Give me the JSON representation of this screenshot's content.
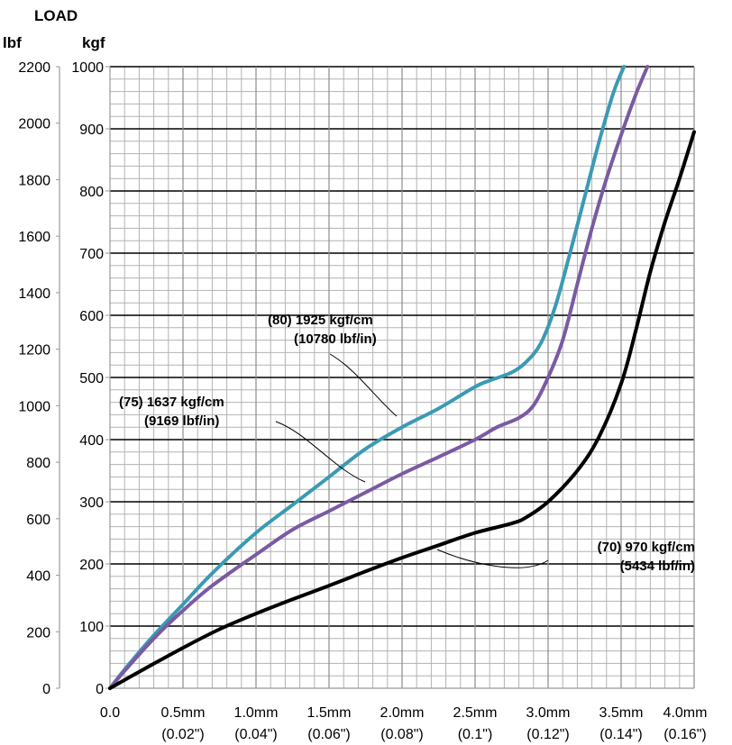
{
  "chart_data": {
    "type": "line",
    "title": "LOAD",
    "ylabel_left": "lbf",
    "ylabel_right": "kgf",
    "xlim": [
      0,
      4.0
    ],
    "ylim_kgf": [
      0,
      1000
    ],
    "ylim_lbf": [
      0,
      2200
    ],
    "grid": true,
    "legend": "none",
    "x_ticks": [
      {
        "value": 0.0,
        "label": "0.0",
        "sub": ""
      },
      {
        "value": 0.5,
        "label": "0.5mm",
        "sub": "(0.02\")"
      },
      {
        "value": 1.0,
        "label": "1.0mm",
        "sub": "(0.04\")"
      },
      {
        "value": 1.5,
        "label": "1.5mm",
        "sub": "(0.06\")"
      },
      {
        "value": 2.0,
        "label": "2.0mm",
        "sub": "(0.08\")"
      },
      {
        "value": 2.5,
        "label": "2.5mm",
        "sub": "(0.1\")"
      },
      {
        "value": 3.0,
        "label": "3.0mm",
        "sub": "(0.12\")"
      },
      {
        "value": 3.5,
        "label": "3.5mm",
        "sub": "(0.14\")"
      },
      {
        "value": 4.0,
        "label": "4.0mm",
        "sub": "(0.16\")"
      }
    ],
    "kgf_ticks": [
      {
        "value": 0,
        "label": "0"
      },
      {
        "value": 100,
        "label": "100"
      },
      {
        "value": 200,
        "label": "200"
      },
      {
        "value": 300,
        "label": "300"
      },
      {
        "value": 400,
        "label": "400"
      },
      {
        "value": 500,
        "label": "500"
      },
      {
        "value": 600,
        "label": "600"
      },
      {
        "value": 700,
        "label": "700"
      },
      {
        "value": 800,
        "label": "800"
      },
      {
        "value": 900,
        "label": "900"
      },
      {
        "value": 1000,
        "label": "1000"
      }
    ],
    "lbf_ticks": [
      {
        "value": 0,
        "label": "0"
      },
      {
        "value": 200,
        "label": "200"
      },
      {
        "value": 400,
        "label": "400"
      },
      {
        "value": 600,
        "label": "600"
      },
      {
        "value": 800,
        "label": "800"
      },
      {
        "value": 1000,
        "label": "1000"
      },
      {
        "value": 1200,
        "label": "1200"
      },
      {
        "value": 1400,
        "label": "1400"
      },
      {
        "value": 1600,
        "label": "1600"
      },
      {
        "value": 1800,
        "label": "1800"
      },
      {
        "value": 2000,
        "label": "2000"
      },
      {
        "value": 2200,
        "label": "2200"
      }
    ],
    "series": [
      {
        "name": "(80) 1925 kgf/cm (10780 lbf/in)",
        "color": "#3a9ab4",
        "x": [
          0,
          0.1,
          0.3,
          0.5,
          0.7,
          1.0,
          1.25,
          1.5,
          1.75,
          2.0,
          2.25,
          2.5,
          2.6,
          2.75,
          2.85,
          2.95,
          3.05,
          3.15,
          3.25,
          3.35,
          3.45,
          3.52
        ],
        "y": [
          0,
          30,
          85,
          135,
          185,
          250,
          295,
          340,
          385,
          420,
          450,
          485,
          495,
          508,
          525,
          555,
          615,
          700,
          790,
          880,
          960,
          1000
        ]
      },
      {
        "name": "(75) 1637 kgf/cm (9169 lbf/in)",
        "color": "#7a5aa2",
        "x": [
          0,
          0.1,
          0.3,
          0.5,
          0.7,
          1.0,
          1.25,
          1.5,
          1.75,
          2.0,
          2.25,
          2.5,
          2.65,
          2.8,
          2.9,
          3.0,
          3.1,
          3.2,
          3.3,
          3.4,
          3.5,
          3.6,
          3.68
        ],
        "y": [
          0,
          28,
          80,
          125,
          165,
          215,
          255,
          285,
          315,
          345,
          372,
          400,
          420,
          435,
          455,
          500,
          560,
          650,
          740,
          820,
          890,
          955,
          1000
        ]
      },
      {
        "name": "(70) 970 kgf/cm (5434 lbf/in)",
        "color": "#000000",
        "x": [
          0,
          0.25,
          0.5,
          0.75,
          1.0,
          1.25,
          1.5,
          1.75,
          2.0,
          2.25,
          2.5,
          2.75,
          2.85,
          3.0,
          3.2,
          3.35,
          3.5,
          3.6,
          3.7,
          3.8,
          3.9,
          4.0
        ],
        "y": [
          0,
          33,
          65,
          95,
          120,
          143,
          165,
          188,
          210,
          230,
          250,
          265,
          275,
          300,
          350,
          405,
          490,
          575,
          670,
          750,
          820,
          895
        ]
      }
    ],
    "annotations": [
      {
        "line1": "(80) 1925 kgf/cm",
        "line2": "(10780 lbf/in)"
      },
      {
        "line1": "(75) 1637 kgf/cm",
        "line2": "(9169 lbf/in)"
      },
      {
        "line1": "(70) 970 kgf/cm",
        "line2": "(5434 lbf/in)"
      }
    ]
  }
}
